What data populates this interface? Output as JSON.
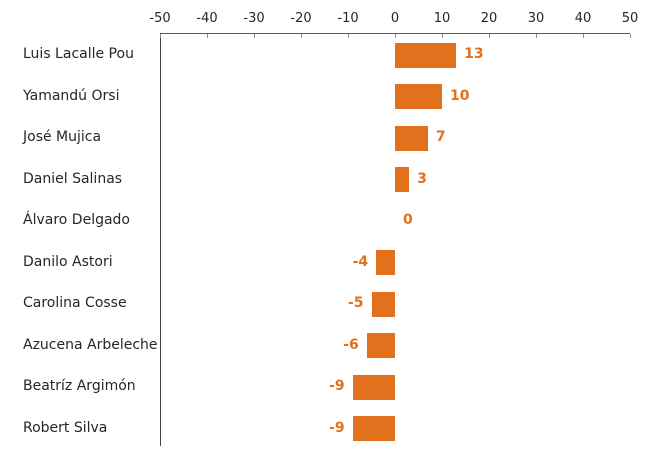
{
  "chart_data": {
    "type": "bar",
    "orientation": "horizontal",
    "title": "",
    "xlabel": "",
    "ylabel": "",
    "categories": [
      "Luis Lacalle Pou",
      "Yamandú Orsi",
      "José Mujica",
      "Daniel Salinas",
      "Álvaro Delgado",
      "Danilo Astori",
      "Carolina Cosse",
      "Azucena Arbeleche",
      "Beatríz Argimón",
      "Robert Silva"
    ],
    "values": [
      13,
      10,
      7,
      3,
      0,
      -4,
      -5,
      -6,
      -9,
      -9
    ],
    "xlim": [
      -50,
      50
    ],
    "x_ticks": [
      -50,
      -40,
      -30,
      -20,
      -10,
      0,
      10,
      20,
      30,
      40,
      50
    ],
    "axis_position": "top",
    "grid": false,
    "legend": false,
    "bar_color": "#E2711D",
    "value_label_color": "#E2711D",
    "category_label_color": "#262626",
    "tick_label_color": "#262626",
    "axis_line_color": "#595959"
  }
}
